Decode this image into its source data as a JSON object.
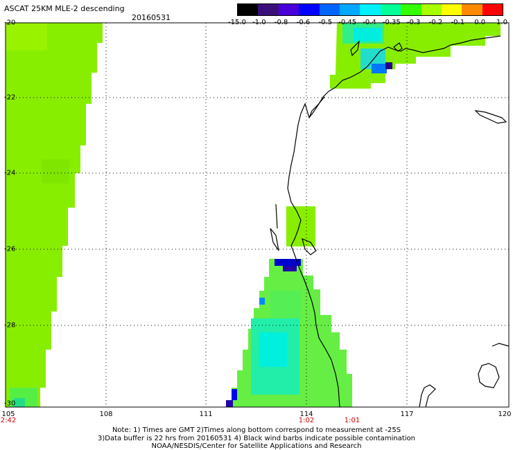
{
  "title": "ASCAT 25KM MLE-2 descending",
  "date": "20160531",
  "colorbar": {
    "labels": [
      "-15.0",
      "-1.0",
      "-0.8",
      "-0.6",
      "-0.5",
      "-0.45",
      "-0.4",
      "-0.35",
      "-0.3",
      "-0.2",
      "-0.1",
      "0.0",
      "1.0"
    ],
    "colors": [
      "#000000",
      "#3a0f7a",
      "#4a00d8",
      "#0000ff",
      "#0066ff",
      "#00a8ff",
      "#00f0ff",
      "#00ff99",
      "#33ff00",
      "#a8ff00",
      "#ffff00",
      "#ff8a00",
      "#ff0000"
    ]
  },
  "axes": {
    "lon_ticks": [
      "105",
      "108",
      "111",
      "114",
      "117",
      "120"
    ],
    "lat_ticks": [
      "-20",
      "-22",
      "-24",
      "-26",
      "-28",
      "-30"
    ],
    "lon_range": [
      105,
      120
    ],
    "lat_range": [
      -20,
      -30
    ]
  },
  "pass_times": [
    "2:42",
    "1:02",
    "1:01"
  ],
  "notes": [
    "Note: 1) Times are GMT 2)Times along bottom correspond to measurement at -25S",
    "3)Data buffer is 22 hrs from 20160531 4) Black wind barbs indicate possible contamination",
    "NOAA/NESDIS/Center for Satellite Applications and Research"
  ],
  "colors": {
    "swath_green": "#86f000",
    "swath_light": "#99ff00",
    "swath_cyan": "#00ffcc",
    "swath_blue": "#0000cc",
    "coast": "#000000",
    "grid": "#000000"
  }
}
